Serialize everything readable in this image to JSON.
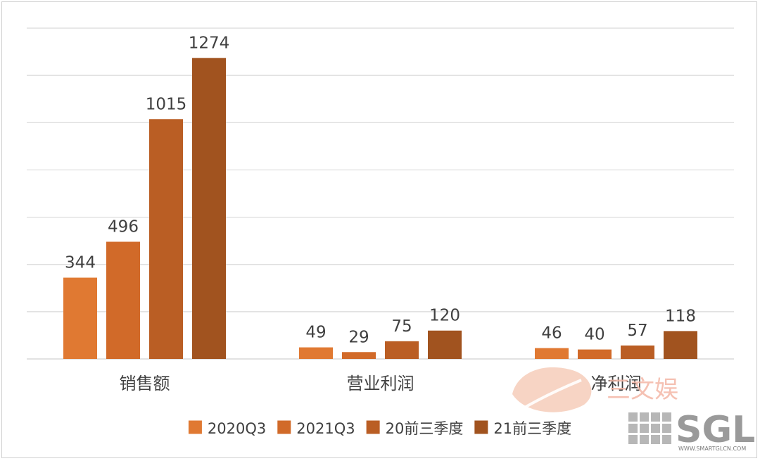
{
  "chart_data": {
    "type": "bar",
    "categories": [
      "销售额",
      "营业利润",
      "净利润"
    ],
    "series": [
      {
        "name": "2020Q3",
        "values": [
          344,
          49,
          46
        ],
        "color": "#e07932"
      },
      {
        "name": "2021Q3",
        "values": [
          496,
          29,
          40
        ],
        "color": "#d16a29"
      },
      {
        "name": "20前三季度",
        "values": [
          1015,
          75,
          57
        ],
        "color": "#ba5e24"
      },
      {
        "name": "21前三季度",
        "values": [
          1274,
          120,
          118
        ],
        "color": "#a1531f"
      }
    ],
    "ylim": [
      0,
      1400
    ],
    "grid": true,
    "legend_position": "bottom",
    "data_labels": true
  },
  "watermark": {
    "text": "三文娱",
    "logo_text": "SGL",
    "url": "WWW.SMARTGLCN.COM"
  }
}
